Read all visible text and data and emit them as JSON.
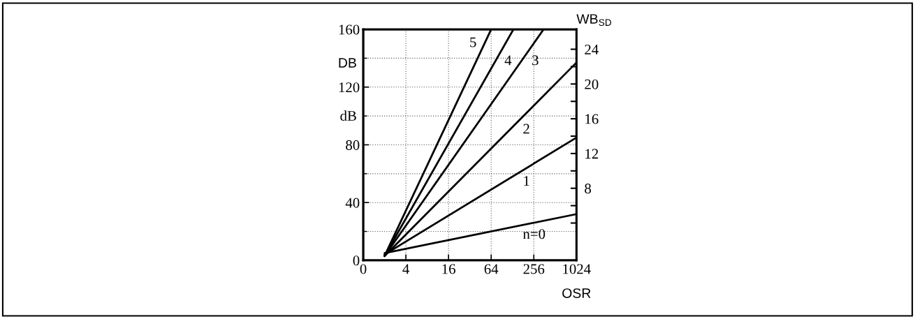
{
  "chart_data": {
    "type": "line",
    "xlabel": "OSR",
    "ylabel": "DB",
    "y2label": "WB$_{SD}$",
    "annotations": [
      "dB"
    ],
    "log": "x",
    "grid": true,
    "line_style": "solid",
    "marker": "none",
    "xlim": [
      0,
      1024
    ],
    "xticks": [
      0,
      4,
      16,
      64,
      256,
      1024
    ],
    "ylim": [
      0,
      160
    ],
    "yticks": [
      0,
      40,
      80,
      120,
      160
    ],
    "y2lim": [
      -0.29,
      26.29
    ],
    "y2ticks": [
      {
        "value": 4,
        "label": null
      },
      {
        "value": 6,
        "label": null
      },
      8,
      {
        "value": 10,
        "label": null
      },
      12,
      {
        "value": 14,
        "label": null
      },
      16,
      {
        "value": 18,
        "label": null
      },
      20,
      {
        "value": 22,
        "label": null
      },
      24
    ],
    "series": [
      {
        "name": "n=0",
        "color": "#000000",
        "x": [
          2,
          1024
        ],
        "values": [
          5,
          32
        ]
      },
      {
        "name": "1",
        "color": "#000000",
        "x": [
          2,
          1024
        ],
        "values": [
          4,
          85
        ]
      },
      {
        "name": "2",
        "color": "#000000",
        "x": [
          2,
          1024
        ],
        "values": [
          3,
          137
        ]
      },
      {
        "name": "3",
        "color": "#000000",
        "x": [
          2,
          352
        ],
        "values": [
          3,
          160
        ]
      },
      {
        "name": "4",
        "color": "#000000",
        "x": [
          2,
          132
        ],
        "values": [
          3,
          160
        ]
      },
      {
        "name": "5",
        "color": "#000000",
        "x": [
          2,
          64
        ],
        "values": [
          3,
          160
        ]
      }
    ]
  }
}
